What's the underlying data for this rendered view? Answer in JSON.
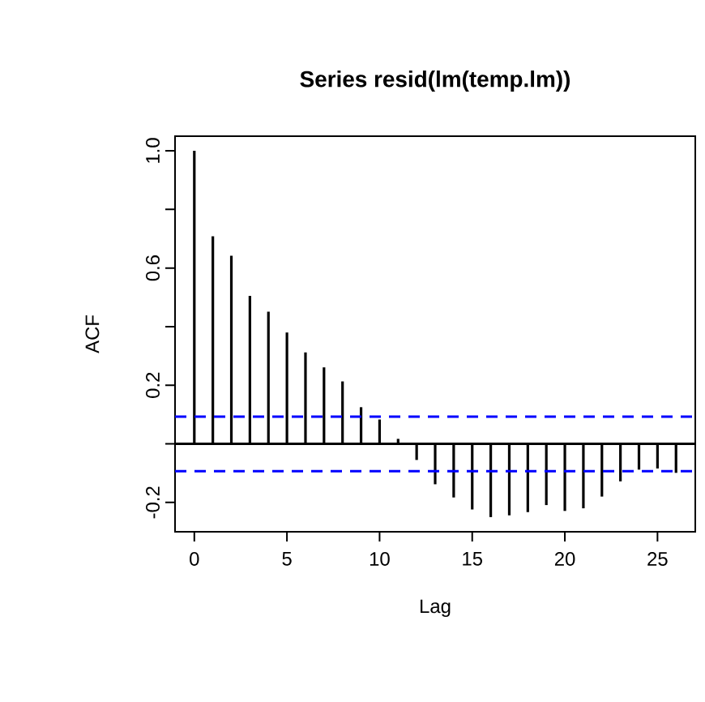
{
  "chart_data": {
    "type": "bar",
    "title": "Series  resid(lm(temp.lm))",
    "xlabel": "Lag",
    "ylabel": "ACF",
    "x": [
      0,
      1,
      2,
      3,
      4,
      5,
      6,
      7,
      8,
      9,
      10,
      11,
      12,
      13,
      14,
      15,
      16,
      17,
      18,
      19,
      20,
      21,
      22,
      23,
      24,
      25,
      26
    ],
    "values": [
      1.0,
      0.708,
      0.642,
      0.505,
      0.451,
      0.38,
      0.312,
      0.261,
      0.213,
      0.125,
      0.083,
      0.017,
      -0.055,
      -0.138,
      -0.183,
      -0.224,
      -0.25,
      -0.244,
      -0.233,
      -0.209,
      -0.229,
      -0.22,
      -0.18,
      -0.128,
      -0.088,
      -0.084,
      -0.099
    ],
    "color": "#000000",
    "xlim": [
      -1.04,
      27.04
    ],
    "ylim": [
      -0.3,
      1.05
    ],
    "xticks": [
      0,
      5,
      10,
      15,
      20,
      25
    ],
    "yticks": [
      {
        "value": -0.2,
        "label": "-0.2"
      },
      {
        "value": 0,
        "label": null
      },
      {
        "value": 0.2,
        "label": "0.2"
      },
      {
        "value": 0.4,
        "label": null
      },
      {
        "value": 0.6,
        "label": "0.6"
      },
      {
        "value": 0.8,
        "label": null
      },
      {
        "value": 1.0,
        "label": "1.0"
      }
    ],
    "ref_lines": [
      {
        "axis": "y",
        "value": 0,
        "color": "#000000",
        "line_style": "solid"
      },
      {
        "axis": "y",
        "value": 0.093,
        "color": "#0000ff",
        "line_style": "dashed"
      },
      {
        "axis": "y",
        "value": -0.093,
        "color": "#0000ff",
        "line_style": "dashed"
      }
    ],
    "grid": false
  }
}
